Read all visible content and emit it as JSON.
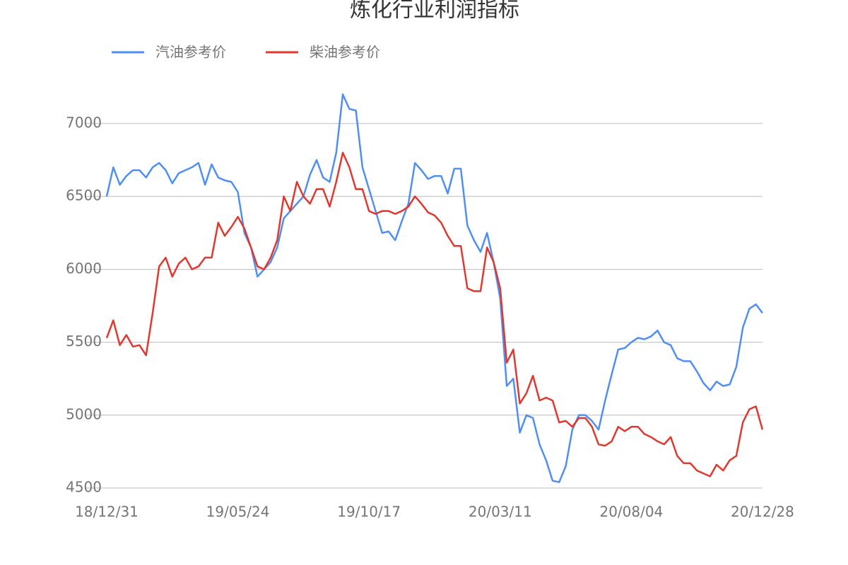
{
  "chart_data": {
    "type": "line",
    "title": "炼化行业利润指标",
    "categories": [
      "18/12/31",
      null,
      null,
      null,
      null,
      null,
      null,
      null,
      null,
      null,
      null,
      null,
      null,
      null,
      null,
      null,
      null,
      null,
      null,
      null,
      "19/05/24",
      null,
      null,
      null,
      null,
      null,
      null,
      null,
      null,
      null,
      null,
      null,
      null,
      null,
      null,
      null,
      null,
      null,
      null,
      null,
      "19/10/17",
      null,
      null,
      null,
      null,
      null,
      null,
      null,
      null,
      null,
      null,
      null,
      null,
      null,
      null,
      null,
      null,
      null,
      null,
      null,
      "20/03/11",
      null,
      null,
      null,
      null,
      null,
      null,
      null,
      null,
      null,
      null,
      null,
      null,
      null,
      null,
      null,
      null,
      null,
      null,
      null,
      "20/08/04",
      null,
      null,
      null,
      null,
      null,
      null,
      null,
      null,
      null,
      null,
      null,
      null,
      null,
      null,
      null,
      null,
      null,
      null,
      null,
      "20/12/28"
    ],
    "series": [
      {
        "name": "汽油参考价",
        "color": "#4f8ef5",
        "values": [
          6500,
          6700,
          6580,
          6640,
          6680,
          6680,
          6630,
          6700,
          6730,
          6680,
          6590,
          6660,
          6680,
          6700,
          6730,
          6580,
          6720,
          6630,
          6610,
          6600,
          6530,
          6250,
          6150,
          5950,
          6000,
          6050,
          6150,
          6350,
          6400,
          6450,
          6500,
          6650,
          6750,
          6630,
          6600,
          6800,
          7200,
          7100,
          7090,
          6700,
          6550,
          6400,
          6250,
          6260,
          6200,
          6330,
          6450,
          6730,
          6680,
          6620,
          6640,
          6640,
          6520,
          6690,
          6690,
          6300,
          6200,
          6120,
          6250,
          6050,
          5800,
          5200,
          5250,
          4880,
          5000,
          4980,
          4800,
          4690,
          4550,
          4540,
          4650,
          4900,
          5000,
          5000,
          4960,
          4900,
          5100,
          5280,
          5450,
          5460,
          5500,
          5530,
          5520,
          5540,
          5580,
          5500,
          5480,
          5390,
          5370,
          5370,
          5300,
          5220,
          5170,
          5230,
          5200,
          5210,
          5330,
          5600,
          5730,
          5760,
          5700
        ]
      },
      {
        "name": "柴油参考价",
        "color": "#e0382e",
        "values": [
          5530,
          5650,
          5480,
          5550,
          5470,
          5480,
          5410,
          5700,
          6020,
          6080,
          5950,
          6040,
          6080,
          6000,
          6020,
          6080,
          6080,
          6320,
          6230,
          6290,
          6360,
          6280,
          6150,
          6020,
          6000,
          6080,
          6200,
          6500,
          6400,
          6600,
          6500,
          6450,
          6550,
          6550,
          6430,
          6600,
          6800,
          6700,
          6550,
          6550,
          6400,
          6380,
          6400,
          6400,
          6380,
          6400,
          6430,
          6500,
          6450,
          6390,
          6370,
          6320,
          6230,
          6160,
          6160,
          5870,
          5850,
          5850,
          6150,
          6050,
          5870,
          5360,
          5450,
          5080,
          5150,
          5270,
          5100,
          5120,
          5100,
          4950,
          4960,
          4920,
          4980,
          4980,
          4920,
          4800,
          4790,
          4820,
          4920,
          4890,
          4920,
          4920,
          4870,
          4850,
          4820,
          4800,
          4850,
          4720,
          4670,
          4670,
          4620,
          4600,
          4580,
          4660,
          4620,
          4690,
          4720,
          4950,
          5040,
          5060,
          4900
        ]
      }
    ],
    "ylim": [
      4500,
      7300
    ],
    "yticks": [
      4500,
      5000,
      5500,
      6000,
      6500,
      7000
    ],
    "grid": true
  }
}
